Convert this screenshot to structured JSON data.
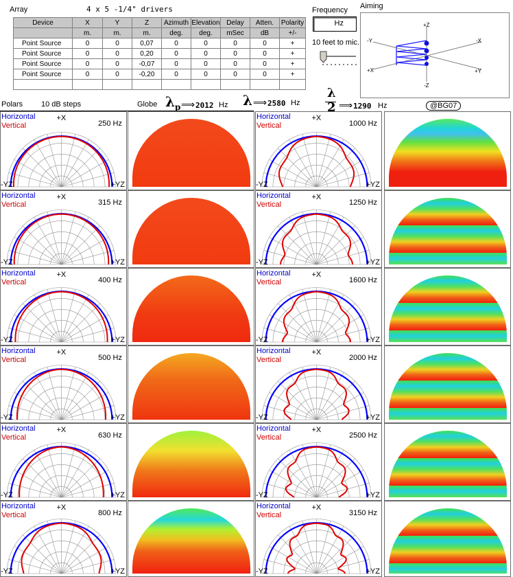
{
  "header": {
    "array_label": "Array",
    "array_desc": "4 x 5 -1/4\" drivers",
    "frequency_label": "Frequency",
    "frequency_unit": "Hz",
    "mic_distance": "10 feet to mic.",
    "aiming_label": "Aiming"
  },
  "table": {
    "columns": [
      "Device",
      "X",
      "Y",
      "Z",
      "Azimuth",
      "Elevation",
      "Delay",
      "Atten.",
      "Polarity"
    ],
    "units": [
      "",
      "m.",
      "m.",
      "m.",
      "deg.",
      "deg.",
      "mSec",
      "dB",
      "+/-"
    ],
    "rows": [
      [
        "Point Source",
        "0",
        "0",
        "0,07",
        "0",
        "0",
        "0",
        "0",
        "+"
      ],
      [
        "Point Source",
        "0",
        "0",
        "0,20",
        "0",
        "0",
        "0",
        "0",
        "+"
      ],
      [
        "Point Source",
        "0",
        "0",
        "-0,07",
        "0",
        "0",
        "0",
        "0",
        "+"
      ],
      [
        "Point Source",
        "0",
        "0",
        "-0,20",
        "0",
        "0",
        "0",
        "0",
        "+"
      ]
    ]
  },
  "aiming": {
    "axes": {
      "pz": "+Z",
      "mz": "-Z",
      "my": "-Y",
      "py": "+Y",
      "mx": "-X",
      "px": "+X"
    }
  },
  "info": {
    "polars_label": "Polars",
    "steps_label": "10 dB steps",
    "globe_label": "Globe",
    "lambda_p": "2012",
    "lambda": "2580",
    "half_lambda": "1290",
    "hz": "Hz",
    "lambda_sym": "λ",
    "lambda_p_sub": "p",
    "half_num": "λ",
    "half_den": "2",
    "arrow": "⟹",
    "badge": "@BG07"
  },
  "polar_labels": {
    "horizontal": "Horizontal",
    "vertical": "Vertical",
    "top": "+X",
    "left": "-YZ",
    "right": "+YZ"
  },
  "colors": {
    "horizontal": "#0000ff",
    "vertical": "#e00000",
    "grid": "#909090"
  },
  "plots": [
    {
      "freq": "250 Hz",
      "vshape": 0.0
    },
    {
      "freq": "315 Hz",
      "vshape": 0.02
    },
    {
      "freq": "400 Hz",
      "vshape": 0.06
    },
    {
      "freq": "500 Hz",
      "vshape": 0.12
    },
    {
      "freq": "630 Hz",
      "vshape": 0.2
    },
    {
      "freq": "800 Hz",
      "vshape": 0.35
    },
    {
      "freq": "1000 Hz",
      "vshape": 0.48
    },
    {
      "freq": "1250 Hz",
      "vshape": 0.58
    },
    {
      "freq": "1600 Hz",
      "vshape": 0.68
    },
    {
      "freq": "2000 Hz",
      "vshape": 0.78
    },
    {
      "freq": "2500 Hz",
      "vshape": 0.88
    },
    {
      "freq": "3150 Hz",
      "vshape": 0.95
    }
  ]
}
